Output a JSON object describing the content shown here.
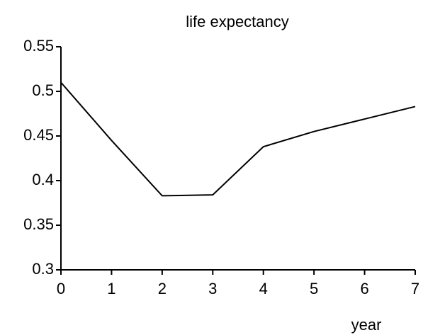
{
  "chart_data": {
    "type": "line",
    "title": "life expectancy",
    "x_label": "year",
    "x": [
      0,
      1,
      2,
      3,
      4,
      5,
      6,
      7
    ],
    "series": [
      {
        "color": "#000000",
        "values": [
          0.51,
          0.445,
          0.383,
          0.384,
          0.438,
          0.455,
          0.469,
          0.483
        ]
      }
    ],
    "xlim": [
      0,
      7
    ],
    "xticks": [
      0,
      1,
      2,
      3,
      4,
      5,
      6,
      7
    ],
    "ylim": [
      0.3,
      0.55
    ],
    "yticks": [
      0.3,
      0.35,
      0.4,
      0.45,
      0.5,
      0.55
    ],
    "grid": false
  }
}
